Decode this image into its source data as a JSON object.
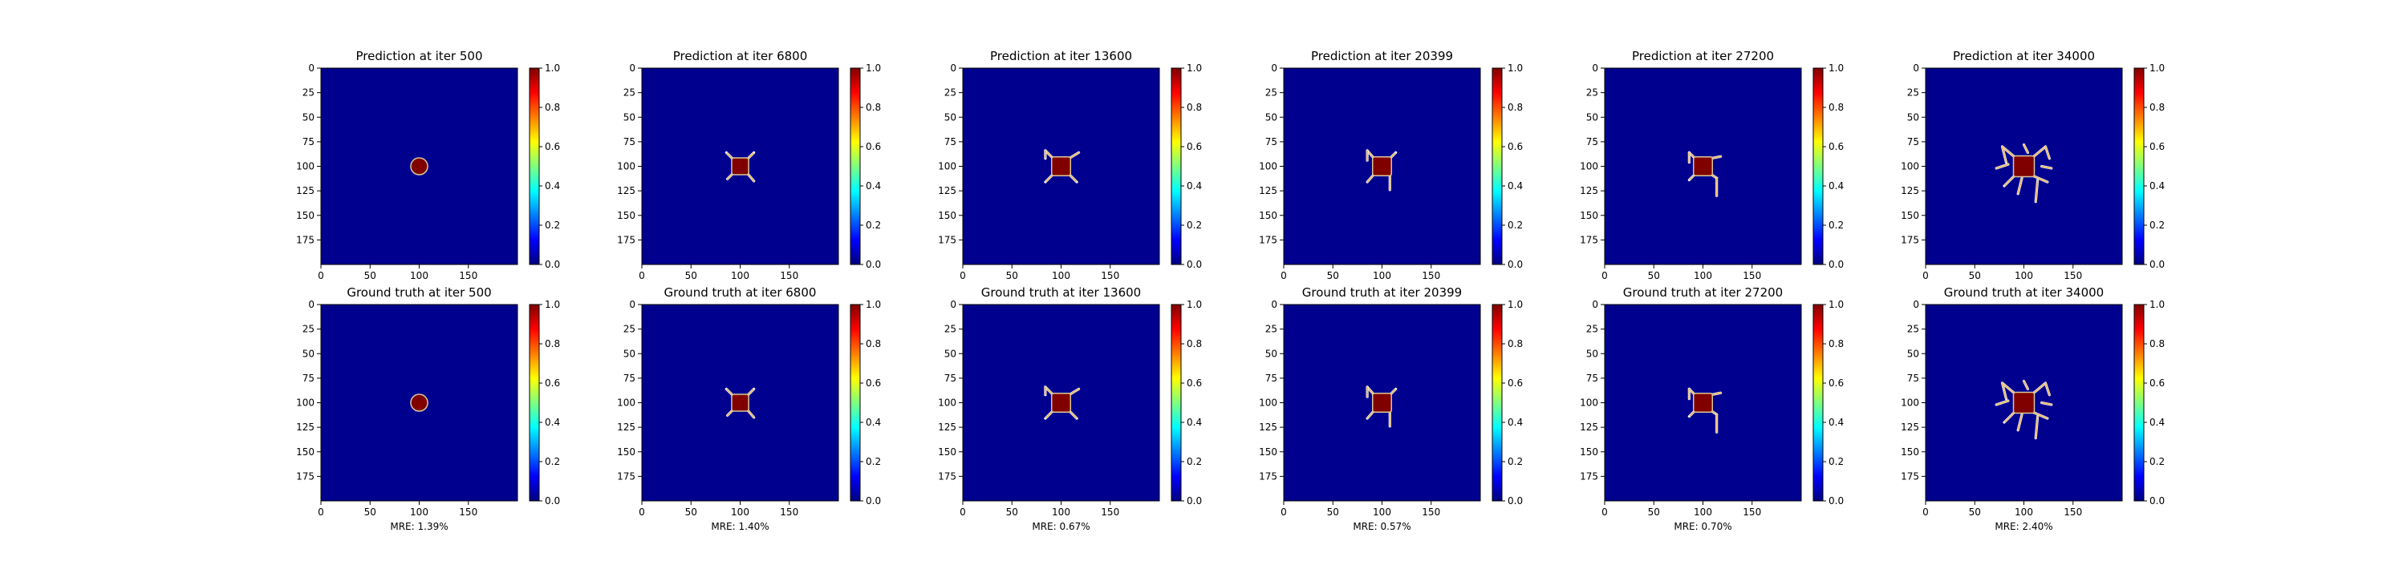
{
  "figure": {
    "rows": [
      {
        "kind": "prediction"
      },
      {
        "kind": "ground_truth"
      }
    ]
  },
  "chart_data": [
    {
      "type": "heatmap",
      "title": "Prediction at iter 500",
      "xlim": [
        0,
        200
      ],
      "ylim": [
        200,
        0
      ],
      "xticks": [
        0,
        50,
        100,
        150
      ],
      "yticks": [
        0,
        25,
        50,
        75,
        100,
        125,
        150,
        175
      ],
      "colorbar": {
        "min": 0.0,
        "max": 1.0,
        "ticks": [
          "0.0",
          "0.2",
          "0.4",
          "0.6",
          "0.8",
          "1.0"
        ],
        "colormap": "jet"
      },
      "background_value": 0.0,
      "description_colors": {
        "background": "#00008f",
        "core": "#800000"
      },
      "pattern": {
        "core_center": [
          100,
          100
        ],
        "core_radius": 8,
        "dendrites": []
      }
    },
    {
      "type": "heatmap",
      "title": "Prediction at iter 6800",
      "xlim": [
        0,
        200
      ],
      "ylim": [
        200,
        0
      ],
      "xticks": [
        0,
        50,
        100,
        150
      ],
      "yticks": [
        0,
        25,
        50,
        75,
        100,
        125,
        150,
        175
      ],
      "colorbar": {
        "min": 0.0,
        "max": 1.0,
        "ticks": [
          "0.0",
          "0.2",
          "0.4",
          "0.6",
          "0.8",
          "1.0"
        ],
        "colormap": "jet"
      },
      "pattern": {
        "core_center": [
          100,
          100
        ],
        "core_radius": 8,
        "dendrites": [
          [
            [
              108,
              92
            ],
            [
              114,
              86
            ]
          ],
          [
            [
              92,
              92
            ],
            [
              86,
              86
            ]
          ],
          [
            [
              108,
              108
            ],
            [
              114,
              115
            ]
          ],
          [
            [
              92,
              108
            ],
            [
              87,
              113
            ]
          ]
        ]
      }
    },
    {
      "type": "heatmap",
      "title": "Prediction at iter 13600",
      "xlim": [
        0,
        200
      ],
      "ylim": [
        200,
        0
      ],
      "xticks": [
        0,
        50,
        100,
        150
      ],
      "yticks": [
        0,
        25,
        50,
        75,
        100,
        125,
        150,
        175
      ],
      "colorbar": {
        "min": 0.0,
        "max": 1.0,
        "ticks": [
          "0.0",
          "0.2",
          "0.4",
          "0.6",
          "0.8",
          "1.0"
        ],
        "colormap": "jet"
      },
      "pattern": {
        "core_center": [
          100,
          100
        ],
        "core_radius": 9,
        "dendrites": [
          [
            [
              108,
              92
            ],
            [
              118,
              86
            ]
          ],
          [
            [
              92,
              92
            ],
            [
              84,
              84
            ]
          ],
          [
            [
              108,
              108
            ],
            [
              116,
              116
            ]
          ],
          [
            [
              92,
              108
            ],
            [
              84,
              116
            ]
          ],
          [
            [
              84,
              84
            ],
            [
              84,
              92
            ]
          ]
        ]
      }
    },
    {
      "type": "heatmap",
      "title": "Prediction at iter 20399",
      "xlim": [
        0,
        200
      ],
      "ylim": [
        200,
        0
      ],
      "xticks": [
        0,
        50,
        100,
        150
      ],
      "yticks": [
        0,
        25,
        50,
        75,
        100,
        125,
        150,
        175
      ],
      "colorbar": {
        "min": 0.0,
        "max": 1.0,
        "ticks": [
          "0.0",
          "0.2",
          "0.4",
          "0.6",
          "0.8",
          "1.0"
        ],
        "colormap": "jet"
      },
      "pattern": {
        "core_center": [
          100,
          100
        ],
        "core_radius": 9,
        "dendrites": [
          [
            [
              108,
              92
            ],
            [
              114,
              86
            ]
          ],
          [
            [
              92,
              92
            ],
            [
              85,
              84
            ]
          ],
          [
            [
              108,
              108
            ],
            [
              108,
              124
            ]
          ],
          [
            [
              92,
              108
            ],
            [
              85,
              116
            ]
          ],
          [
            [
              85,
              84
            ],
            [
              85,
              94
            ]
          ]
        ]
      }
    },
    {
      "type": "heatmap",
      "title": "Prediction at iter 27200",
      "xlim": [
        0,
        200
      ],
      "ylim": [
        200,
        0
      ],
      "xticks": [
        0,
        50,
        100,
        150
      ],
      "yticks": [
        0,
        25,
        50,
        75,
        100,
        125,
        150,
        175
      ],
      "colorbar": {
        "min": 0.0,
        "max": 1.0,
        "ticks": [
          "0.0",
          "0.2",
          "0.4",
          "0.6",
          "0.8",
          "1.0"
        ],
        "colormap": "jet"
      },
      "pattern": {
        "core_center": [
          100,
          100
        ],
        "core_radius": 9,
        "dendrites": [
          [
            [
              108,
              92
            ],
            [
              118,
              90
            ]
          ],
          [
            [
              92,
              92
            ],
            [
              86,
              86
            ]
          ],
          [
            [
              108,
              108
            ],
            [
              114,
              112
            ]
          ],
          [
            [
              114,
              112
            ],
            [
              114,
              130
            ]
          ],
          [
            [
              92,
              108
            ],
            [
              86,
              114
            ]
          ],
          [
            [
              86,
              86
            ],
            [
              86,
              96
            ]
          ]
        ]
      }
    },
    {
      "type": "heatmap",
      "title": "Prediction at iter 34000",
      "xlim": [
        0,
        200
      ],
      "ylim": [
        200,
        0
      ],
      "xticks": [
        0,
        50,
        100,
        150
      ],
      "yticks": [
        0,
        25,
        50,
        75,
        100,
        125,
        150,
        175
      ],
      "colorbar": {
        "min": 0.0,
        "max": 1.0,
        "ticks": [
          "0.0",
          "0.2",
          "0.4",
          "0.6",
          "0.8",
          "1.0"
        ],
        "colormap": "jet"
      },
      "pattern": {
        "core_center": [
          100,
          100
        ],
        "core_radius": 10,
        "dendrites": [
          [
            [
              110,
              90
            ],
            [
              122,
              80
            ]
          ],
          [
            [
              122,
              80
            ],
            [
              126,
              92
            ]
          ],
          [
            [
              90,
              90
            ],
            [
              78,
              80
            ]
          ],
          [
            [
              78,
              80
            ],
            [
              82,
              96
            ]
          ],
          [
            [
              110,
              110
            ],
            [
              124,
              116
            ]
          ],
          [
            [
              114,
              114
            ],
            [
              112,
              136
            ]
          ],
          [
            [
              90,
              110
            ],
            [
              80,
              120
            ]
          ],
          [
            [
              98,
              112
            ],
            [
              94,
              128
            ]
          ],
          [
            [
              84,
              98
            ],
            [
              72,
              102
            ]
          ],
          [
            [
              104,
              86
            ],
            [
              100,
              78
            ]
          ],
          [
            [
              118,
              100
            ],
            [
              128,
              102
            ]
          ]
        ]
      }
    },
    {
      "type": "heatmap",
      "title": "Ground truth at iter 500",
      "xlim": [
        0,
        200
      ],
      "ylim": [
        200,
        0
      ],
      "xticks": [
        0,
        50,
        100,
        150
      ],
      "yticks": [
        0,
        25,
        50,
        75,
        100,
        125,
        150,
        175
      ],
      "colorbar": {
        "min": 0.0,
        "max": 1.0,
        "ticks": [
          "0.0",
          "0.2",
          "0.4",
          "0.6",
          "0.8",
          "1.0"
        ],
        "colormap": "jet"
      },
      "metric": "MRE: 1.39%",
      "pattern": {
        "core_center": [
          100,
          100
        ],
        "core_radius": 8,
        "dendrites": []
      }
    },
    {
      "type": "heatmap",
      "title": "Ground truth at iter 6800",
      "xlim": [
        0,
        200
      ],
      "ylim": [
        200,
        0
      ],
      "xticks": [
        0,
        50,
        100,
        150
      ],
      "yticks": [
        0,
        25,
        50,
        75,
        100,
        125,
        150,
        175
      ],
      "colorbar": {
        "min": 0.0,
        "max": 1.0,
        "ticks": [
          "0.0",
          "0.2",
          "0.4",
          "0.6",
          "0.8",
          "1.0"
        ],
        "colormap": "jet"
      },
      "metric": "MRE: 1.40%",
      "pattern": {
        "core_center": [
          100,
          100
        ],
        "core_radius": 8,
        "dendrites": [
          [
            [
              108,
              92
            ],
            [
              114,
              86
            ]
          ],
          [
            [
              92,
              92
            ],
            [
              86,
              86
            ]
          ],
          [
            [
              108,
              108
            ],
            [
              114,
              115
            ]
          ],
          [
            [
              92,
              108
            ],
            [
              87,
              113
            ]
          ]
        ]
      }
    },
    {
      "type": "heatmap",
      "title": "Ground truth at iter 13600",
      "xlim": [
        0,
        200
      ],
      "ylim": [
        200,
        0
      ],
      "xticks": [
        0,
        50,
        100,
        150
      ],
      "yticks": [
        0,
        25,
        50,
        75,
        100,
        125,
        150,
        175
      ],
      "colorbar": {
        "min": 0.0,
        "max": 1.0,
        "ticks": [
          "0.0",
          "0.2",
          "0.4",
          "0.6",
          "0.8",
          "1.0"
        ],
        "colormap": "jet"
      },
      "metric": "MRE: 0.67%",
      "pattern": {
        "core_center": [
          100,
          100
        ],
        "core_radius": 9,
        "dendrites": [
          [
            [
              108,
              92
            ],
            [
              118,
              86
            ]
          ],
          [
            [
              92,
              92
            ],
            [
              84,
              84
            ]
          ],
          [
            [
              108,
              108
            ],
            [
              116,
              116
            ]
          ],
          [
            [
              92,
              108
            ],
            [
              84,
              116
            ]
          ],
          [
            [
              84,
              84
            ],
            [
              84,
              92
            ]
          ]
        ]
      }
    },
    {
      "type": "heatmap",
      "title": "Ground truth at iter 20399",
      "xlim": [
        0,
        200
      ],
      "ylim": [
        200,
        0
      ],
      "xticks": [
        0,
        50,
        100,
        150
      ],
      "yticks": [
        0,
        25,
        50,
        75,
        100,
        125,
        150,
        175
      ],
      "colorbar": {
        "min": 0.0,
        "max": 1.0,
        "ticks": [
          "0.0",
          "0.2",
          "0.4",
          "0.6",
          "0.8",
          "1.0"
        ],
        "colormap": "jet"
      },
      "metric": "MRE: 0.57%",
      "pattern": {
        "core_center": [
          100,
          100
        ],
        "core_radius": 9,
        "dendrites": [
          [
            [
              108,
              92
            ],
            [
              114,
              86
            ]
          ],
          [
            [
              92,
              92
            ],
            [
              85,
              84
            ]
          ],
          [
            [
              108,
              108
            ],
            [
              108,
              124
            ]
          ],
          [
            [
              92,
              108
            ],
            [
              85,
              116
            ]
          ],
          [
            [
              85,
              84
            ],
            [
              85,
              94
            ]
          ]
        ]
      }
    },
    {
      "type": "heatmap",
      "title": "Ground truth at iter 27200",
      "xlim": [
        0,
        200
      ],
      "ylim": [
        200,
        0
      ],
      "xticks": [
        0,
        50,
        100,
        150
      ],
      "yticks": [
        0,
        25,
        50,
        75,
        100,
        125,
        150,
        175
      ],
      "colorbar": {
        "min": 0.0,
        "max": 1.0,
        "ticks": [
          "0.0",
          "0.2",
          "0.4",
          "0.6",
          "0.8",
          "1.0"
        ],
        "colormap": "jet"
      },
      "metric": "MRE: 0.70%",
      "pattern": {
        "core_center": [
          100,
          100
        ],
        "core_radius": 9,
        "dendrites": [
          [
            [
              108,
              92
            ],
            [
              118,
              90
            ]
          ],
          [
            [
              92,
              92
            ],
            [
              86,
              86
            ]
          ],
          [
            [
              108,
              108
            ],
            [
              114,
              112
            ]
          ],
          [
            [
              114,
              112
            ],
            [
              114,
              130
            ]
          ],
          [
            [
              92,
              108
            ],
            [
              86,
              114
            ]
          ],
          [
            [
              86,
              86
            ],
            [
              86,
              96
            ]
          ]
        ]
      }
    },
    {
      "type": "heatmap",
      "title": "Ground truth at iter 34000",
      "xlim": [
        0,
        200
      ],
      "ylim": [
        200,
        0
      ],
      "xticks": [
        0,
        50,
        100,
        150
      ],
      "yticks": [
        0,
        25,
        50,
        75,
        100,
        125,
        150,
        175
      ],
      "colorbar": {
        "min": 0.0,
        "max": 1.0,
        "ticks": [
          "0.0",
          "0.2",
          "0.4",
          "0.6",
          "0.8",
          "1.0"
        ],
        "colormap": "jet"
      },
      "metric": "MRE: 2.40%",
      "pattern": {
        "core_center": [
          100,
          100
        ],
        "core_radius": 10,
        "dendrites": [
          [
            [
              110,
              90
            ],
            [
              122,
              80
            ]
          ],
          [
            [
              122,
              80
            ],
            [
              126,
              92
            ]
          ],
          [
            [
              90,
              90
            ],
            [
              78,
              80
            ]
          ],
          [
            [
              78,
              80
            ],
            [
              82,
              96
            ]
          ],
          [
            [
              110,
              110
            ],
            [
              124,
              116
            ]
          ],
          [
            [
              114,
              114
            ],
            [
              112,
              136
            ]
          ],
          [
            [
              90,
              110
            ],
            [
              80,
              120
            ]
          ],
          [
            [
              98,
              112
            ],
            [
              94,
              128
            ]
          ],
          [
            [
              84,
              98
            ],
            [
              72,
              102
            ]
          ],
          [
            [
              104,
              86
            ],
            [
              100,
              78
            ]
          ],
          [
            [
              118,
              100
            ],
            [
              128,
              102
            ]
          ]
        ]
      }
    }
  ],
  "colors": {
    "background_field": "#00008f",
    "core": "#800000",
    "dendrite": "#e8b86a",
    "dendrite_edge": "#f5f5f0",
    "jet_stops": [
      "#00007f",
      "#0000ff",
      "#007fff",
      "#00ffff",
      "#7fff7f",
      "#ffff00",
      "#ff7f00",
      "#ff0000",
      "#7f0000"
    ]
  }
}
